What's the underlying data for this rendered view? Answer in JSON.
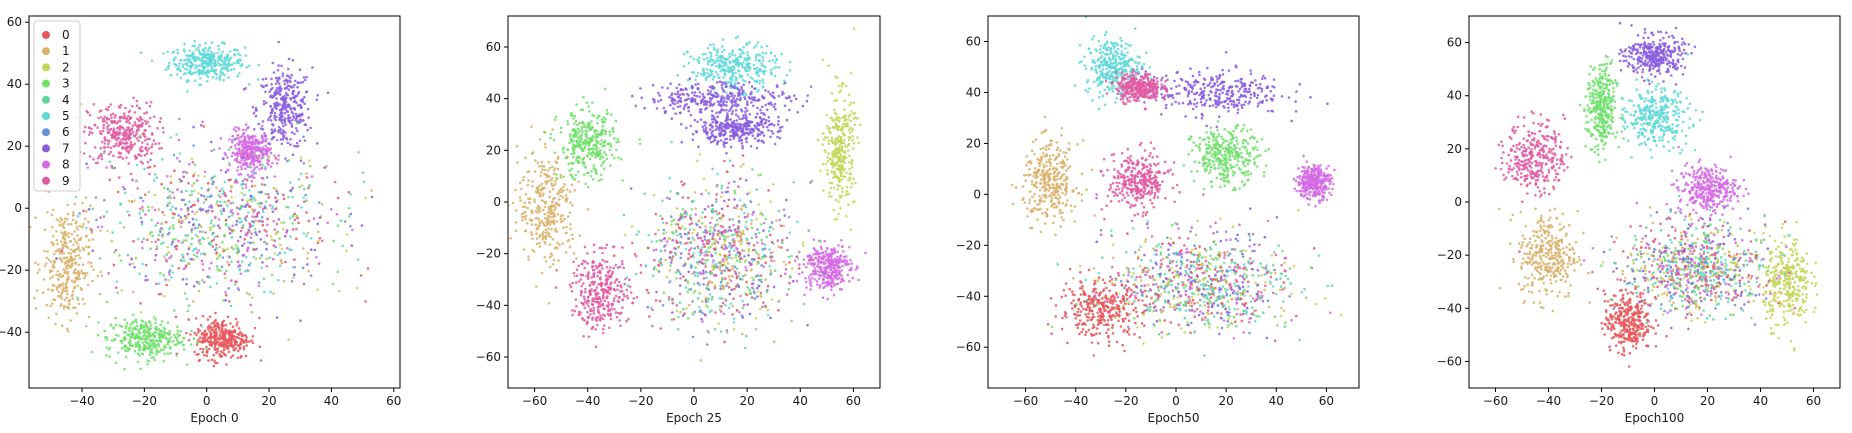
{
  "chart_data": [
    {
      "type": "scatter",
      "xlabel": "Epoch 0",
      "xlim": [
        -57,
        62
      ],
      "ylim": [
        -58,
        62
      ],
      "xticks": [
        -40,
        -20,
        0,
        20,
        40,
        60
      ],
      "yticks": [
        -40,
        -20,
        0,
        20,
        40,
        60
      ],
      "grid": false,
      "legend": {
        "placement": "top-left",
        "entries": [
          "0",
          "1",
          "2",
          "3",
          "4",
          "5",
          "6",
          "7",
          "8",
          "9"
        ]
      },
      "clusters": [
        {
          "label": "5",
          "center": [
            0,
            47
          ],
          "spread": [
            11,
            5
          ]
        },
        {
          "label": "7",
          "center": [
            25,
            32
          ],
          "spread": [
            8,
            12
          ]
        },
        {
          "label": "9",
          "center": [
            -27,
            24
          ],
          "spread": [
            10,
            9
          ]
        },
        {
          "label": "8",
          "center": [
            14,
            18
          ],
          "spread": [
            6,
            6
          ]
        },
        {
          "label": "1",
          "center": [
            -45,
            -18
          ],
          "spread": [
            7,
            17
          ]
        },
        {
          "label": "0",
          "center": [
            5,
            -42
          ],
          "spread": [
            8,
            6
          ]
        },
        {
          "label": "3",
          "center": [
            -20,
            -42
          ],
          "spread": [
            11,
            6
          ]
        },
        {
          "label": "mixed",
          "center": [
            5,
            -5
          ],
          "spread": [
            35,
            22
          ]
        }
      ]
    },
    {
      "type": "scatter",
      "xlabel": "Epoch 25",
      "xlim": [
        -70,
        70
      ],
      "ylim": [
        -72,
        72
      ],
      "xticks": [
        -60,
        -40,
        -20,
        0,
        20,
        40,
        60
      ],
      "yticks": [
        -60,
        -40,
        -20,
        0,
        20,
        40,
        60
      ],
      "grid": false,
      "clusters": [
        {
          "label": "5",
          "center": [
            15,
            52
          ],
          "spread": [
            15,
            8
          ]
        },
        {
          "label": "7",
          "center": [
            10,
            40
          ],
          "spread": [
            25,
            6
          ]
        },
        {
          "label": "7",
          "center": [
            15,
            28
          ],
          "spread": [
            15,
            5
          ]
        },
        {
          "label": "1",
          "center": [
            -55,
            -2
          ],
          "spread": [
            10,
            20
          ]
        },
        {
          "label": "3",
          "center": [
            -40,
            22
          ],
          "spread": [
            10,
            12
          ]
        },
        {
          "label": "9",
          "center": [
            -35,
            -35
          ],
          "spread": [
            10,
            13
          ]
        },
        {
          "label": "8",
          "center": [
            50,
            -25
          ],
          "spread": [
            8,
            8
          ]
        },
        {
          "label": "2",
          "center": [
            55,
            20
          ],
          "spread": [
            5,
            20
          ]
        },
        {
          "label": "mixed",
          "center": [
            10,
            -20
          ],
          "spread": [
            25,
            25
          ]
        }
      ]
    },
    {
      "type": "scatter",
      "xlabel": "Epoch50",
      "xlim": [
        -75,
        73
      ],
      "ylim": [
        -76,
        70
      ],
      "xticks": [
        -60,
        -40,
        -20,
        0,
        20,
        40,
        60
      ],
      "yticks": [
        -60,
        -40,
        -20,
        0,
        20,
        40,
        60
      ],
      "grid": false,
      "clusters": [
        {
          "label": "5",
          "center": [
            -25,
            50
          ],
          "spread": [
            10,
            10
          ]
        },
        {
          "label": "7",
          "center": [
            15,
            40
          ],
          "spread": [
            25,
            8
          ]
        },
        {
          "label": "9",
          "center": [
            -15,
            42
          ],
          "spread": [
            8,
            5
          ]
        },
        {
          "label": "1",
          "center": [
            -50,
            5
          ],
          "spread": [
            10,
            14
          ]
        },
        {
          "label": "9",
          "center": [
            -15,
            5
          ],
          "spread": [
            11,
            10
          ]
        },
        {
          "label": "3",
          "center": [
            20,
            15
          ],
          "spread": [
            12,
            10
          ]
        },
        {
          "label": "8",
          "center": [
            55,
            5
          ],
          "spread": [
            6,
            6
          ]
        },
        {
          "label": "0",
          "center": [
            -30,
            -45
          ],
          "spread": [
            15,
            10
          ]
        },
        {
          "label": "mixed",
          "center": [
            10,
            -35
          ],
          "spread": [
            35,
            18
          ]
        }
      ]
    },
    {
      "type": "scatter",
      "xlabel": "Epoch100",
      "xlim": [
        -70,
        70
      ],
      "ylim": [
        -70,
        70
      ],
      "xticks": [
        -60,
        -40,
        -20,
        0,
        20,
        40,
        60
      ],
      "yticks": [
        -60,
        -40,
        -20,
        0,
        20,
        40,
        60
      ],
      "grid": false,
      "clusters": [
        {
          "label": "7",
          "center": [
            0,
            55
          ],
          "spread": [
            10,
            7
          ]
        },
        {
          "label": "5",
          "center": [
            0,
            32
          ],
          "spread": [
            12,
            10
          ]
        },
        {
          "label": "9",
          "center": [
            -45,
            17
          ],
          "spread": [
            10,
            12
          ]
        },
        {
          "label": "3",
          "center": [
            -20,
            35
          ],
          "spread": [
            5,
            15
          ]
        },
        {
          "label": "1",
          "center": [
            -40,
            -20
          ],
          "spread": [
            10,
            15
          ]
        },
        {
          "label": "8",
          "center": [
            20,
            5
          ],
          "spread": [
            10,
            8
          ]
        },
        {
          "label": "0",
          "center": [
            -10,
            -45
          ],
          "spread": [
            8,
            10
          ]
        },
        {
          "label": "2",
          "center": [
            50,
            -30
          ],
          "spread": [
            8,
            15
          ]
        },
        {
          "label": "mixed",
          "center": [
            15,
            -25
          ],
          "spread": [
            25,
            15
          ]
        }
      ]
    }
  ],
  "colors": {
    "0": "#e8565a",
    "1": "#d9b16a",
    "2": "#c4d65a",
    "3": "#6fe16a",
    "4": "#5fd59a",
    "5": "#5fd8d8",
    "6": "#6491d8",
    "7": "#8a5ce0",
    "8": "#d56ae6",
    "9": "#e05aa2"
  }
}
